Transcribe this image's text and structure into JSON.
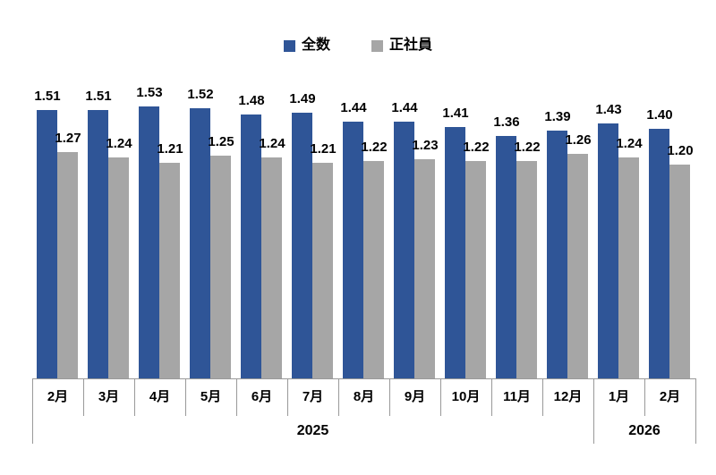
{
  "legend": {
    "items": [
      {
        "label": "全数",
        "color": "#2F5597"
      },
      {
        "label": "正社員",
        "color": "#A6A6A6"
      }
    ]
  },
  "chart_data": {
    "type": "bar",
    "title": "",
    "xlabel": "",
    "ylabel": "",
    "ylim": [
      0,
      1.6
    ],
    "grid": false,
    "legend_position": "top-center",
    "value_labels": true,
    "value_format_decimals": 2,
    "axis_color": "#999999",
    "categories": [
      "2月",
      "3月",
      "4月",
      "5月",
      "6月",
      "7月",
      "8月",
      "9月",
      "10月",
      "11月",
      "12月",
      "1月",
      "2月"
    ],
    "series": [
      {
        "name": "全数",
        "color": "#2F5597",
        "values": [
          1.51,
          1.51,
          1.53,
          1.52,
          1.48,
          1.49,
          1.44,
          1.44,
          1.41,
          1.36,
          1.39,
          1.43,
          1.4
        ]
      },
      {
        "name": "正社員",
        "color": "#A6A6A6",
        "values": [
          1.27,
          1.24,
          1.21,
          1.25,
          1.24,
          1.21,
          1.22,
          1.23,
          1.22,
          1.22,
          1.26,
          1.24,
          1.2
        ]
      }
    ],
    "year_groups": [
      {
        "label": "2025",
        "start": 0,
        "end": 10
      },
      {
        "label": "2026",
        "start": 11,
        "end": 12
      }
    ]
  }
}
